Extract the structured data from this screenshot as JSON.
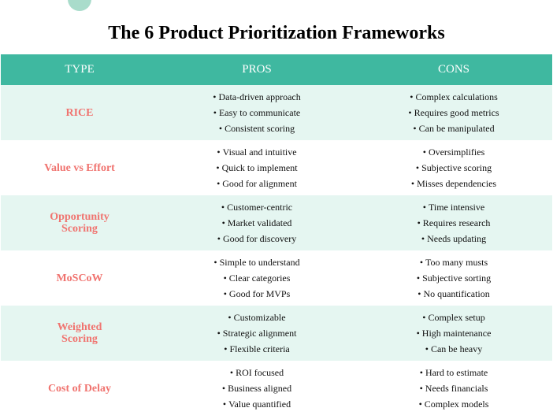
{
  "title": "The 6 Product Prioritization Frameworks",
  "headers": {
    "type": "TYPE",
    "pros": "PROS",
    "cons": "CONS"
  },
  "rows": [
    {
      "type": "RICE",
      "pros": [
        "Data-driven approach",
        "Easy to communicate",
        "Consistent scoring"
      ],
      "cons": [
        "Complex calculations",
        "Requires good metrics",
        "Can be manipulated"
      ]
    },
    {
      "type": "Value vs Effort",
      "pros": [
        "Visual and intuitive",
        "Quick to implement",
        "Good for alignment"
      ],
      "cons": [
        "Oversimplifies",
        "Subjective scoring",
        "Misses dependencies"
      ]
    },
    {
      "type": "Opportunity Scoring",
      "pros": [
        "Customer-centric",
        "Market validated",
        "Good for discovery"
      ],
      "cons": [
        "Time intensive",
        "Requires research",
        "Needs updating"
      ]
    },
    {
      "type": "MoSCoW",
      "pros": [
        "Simple to understand",
        "Clear categories",
        "Good for MVPs"
      ],
      "cons": [
        "Too many musts",
        "Subjective sorting",
        "No quantification"
      ]
    },
    {
      "type": "Weighted Scoring",
      "pros": [
        "Customizable",
        "Strategic alignment",
        "Flexible criteria"
      ],
      "cons": [
        "Complex setup",
        "High maintenance",
        "Can be heavy"
      ]
    },
    {
      "type": "Cost of Delay",
      "pros": [
        "ROI focused",
        "Business aligned",
        "Value quantified"
      ],
      "cons": [
        "Hard to estimate",
        "Needs financials",
        "Complex models"
      ]
    }
  ],
  "colors": {
    "header_bg": "#3fb8a0",
    "row_shade": "#e5f6f1",
    "type_text": "#f07470",
    "deco_circle": "#a9dccb"
  }
}
